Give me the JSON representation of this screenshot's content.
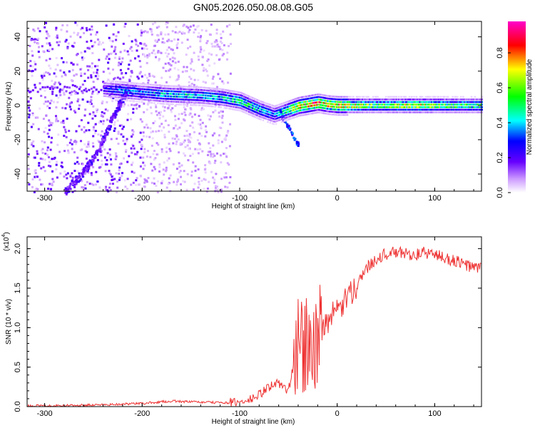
{
  "title": "GN05.2026.050.08.08.G05",
  "chart_data": [
    {
      "type": "heatmap",
      "xlabel": "Height of straight line (km)",
      "ylabel": "Frequency (Hz)",
      "xlim": [
        -318,
        148
      ],
      "ylim": [
        -50,
        49
      ],
      "x_ticks": [
        -300,
        -200,
        -100,
        0,
        100
      ],
      "y_ticks": [
        -40,
        -20,
        0,
        20,
        40
      ],
      "colorbar": {
        "label": "Normalized spectral amplitude",
        "range": [
          0,
          0.98
        ],
        "ticks": [
          "0.0",
          "0.2",
          "0.4",
          "0.6",
          "0.8"
        ],
        "colors": [
          "#ffffff",
          "#cc99ff",
          "#6600ff",
          "#0000ff",
          "#00ffff",
          "#00ff00",
          "#ffff00",
          "#ff0000",
          "#ff00cc"
        ]
      },
      "ridge": [
        {
          "x": -240,
          "y": 10,
          "a": 0.3
        },
        {
          "x": -220,
          "y": 9,
          "a": 0.45
        },
        {
          "x": -200,
          "y": 8,
          "a": 0.4
        },
        {
          "x": -180,
          "y": 7,
          "a": 0.5
        },
        {
          "x": -160,
          "y": 6.5,
          "a": 0.5
        },
        {
          "x": -140,
          "y": 6,
          "a": 0.45
        },
        {
          "x": -120,
          "y": 5,
          "a": 0.5
        },
        {
          "x": -100,
          "y": 3,
          "a": 0.55
        },
        {
          "x": -80,
          "y": -2,
          "a": 0.5
        },
        {
          "x": -65,
          "y": -5,
          "a": 0.4
        },
        {
          "x": -50,
          "y": -2,
          "a": 0.6
        },
        {
          "x": -40,
          "y": 0,
          "a": 0.8
        },
        {
          "x": -30,
          "y": 1,
          "a": 0.85
        },
        {
          "x": -20,
          "y": 2,
          "a": 0.8
        },
        {
          "x": -10,
          "y": 1,
          "a": 0.75
        },
        {
          "x": 0,
          "y": 0.5,
          "a": 0.8
        },
        {
          "x": 20,
          "y": 0.5,
          "a": 0.7
        },
        {
          "x": 40,
          "y": 0.5,
          "a": 0.6
        },
        {
          "x": 60,
          "y": 0.5,
          "a": 0.65
        },
        {
          "x": 80,
          "y": 0.5,
          "a": 0.7
        },
        {
          "x": 100,
          "y": 0.5,
          "a": 0.65
        },
        {
          "x": 120,
          "y": 0.5,
          "a": 0.6
        },
        {
          "x": 148,
          "y": 0.5,
          "a": 0.55
        }
      ],
      "descending_branch": [
        {
          "x": -280,
          "y": -50
        },
        {
          "x": -260,
          "y": -38
        },
        {
          "x": -245,
          "y": -25
        },
        {
          "x": -235,
          "y": -12
        },
        {
          "x": -225,
          "y": 0
        },
        {
          "x": -215,
          "y": 10
        }
      ]
    },
    {
      "type": "line",
      "xlabel": "Height of straight line (km)",
      "ylabel": "SNR (10 * v/v)",
      "y_multiplier_label": "(x10",
      "y_multiplier_exponent": "4",
      "y_multiplier_close": ")",
      "xlim": [
        -318,
        148
      ],
      "ylim": [
        0,
        2.15
      ],
      "x_ticks": [
        -300,
        -200,
        -100,
        0,
        100
      ],
      "y_ticks": [
        "0.0",
        "0.5",
        "1.0",
        "1.5",
        "2.0"
      ],
      "color": "#ee3333",
      "series": [
        {
          "name": "SNR",
          "x": [
            -318,
            -250,
            -200,
            -170,
            -150,
            -120,
            -100,
            -90,
            -80,
            -70,
            -60,
            -50,
            -45,
            -40,
            -35,
            -30,
            -25,
            -20,
            -15,
            -10,
            -5,
            0,
            10,
            20,
            30,
            40,
            50,
            60,
            70,
            80,
            90,
            100,
            110,
            120,
            130,
            140,
            148
          ],
          "y": [
            0.01,
            0.02,
            0.04,
            0.07,
            0.06,
            0.05,
            0.05,
            0.08,
            0.15,
            0.25,
            0.3,
            0.2,
            0.5,
            0.95,
            0.85,
            0.9,
            0.9,
            0.95,
            1.0,
            1.1,
            1.15,
            1.2,
            1.35,
            1.55,
            1.75,
            1.88,
            1.93,
            1.95,
            1.94,
            1.92,
            1.95,
            1.93,
            1.88,
            1.85,
            1.8,
            1.76,
            1.75
          ]
        }
      ]
    }
  ]
}
